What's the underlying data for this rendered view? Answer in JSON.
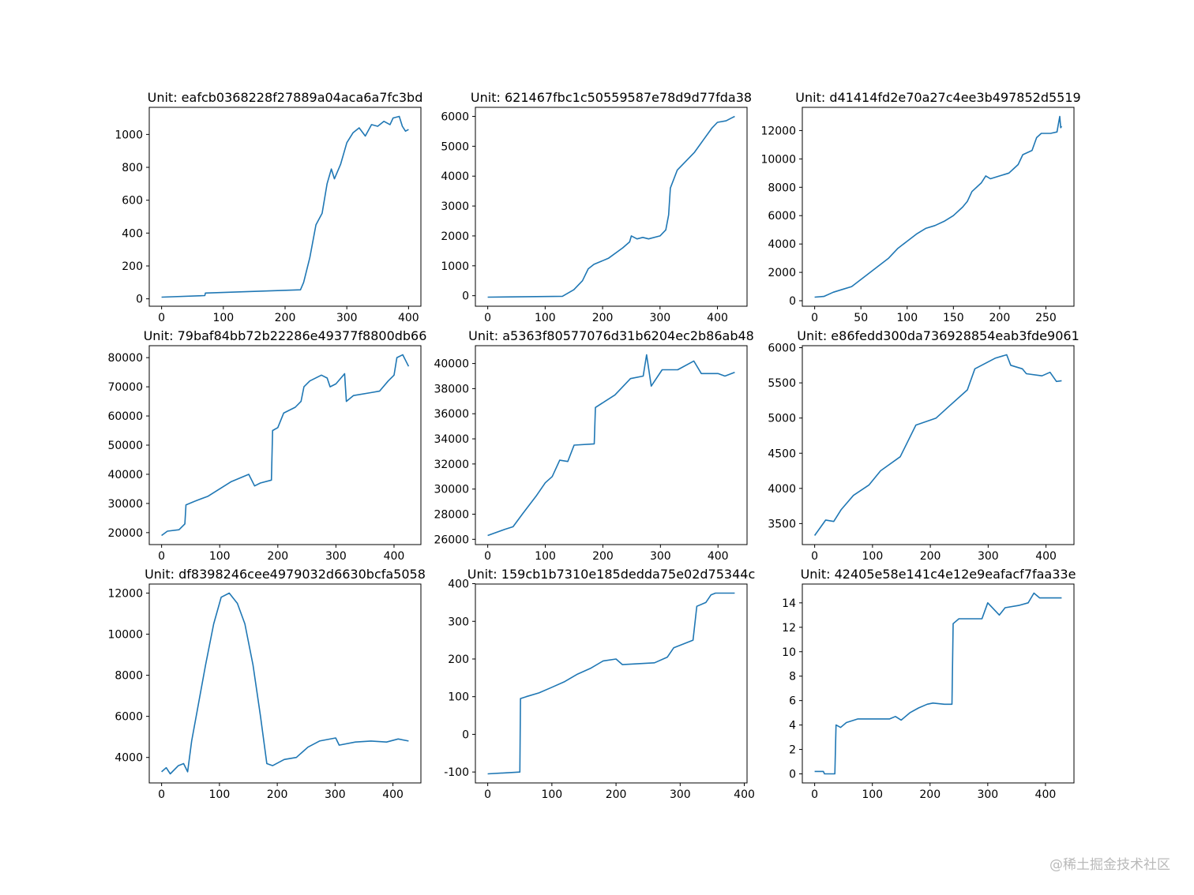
{
  "watermark": "@稀土掘金技术社区",
  "line_color": "#1f77b4",
  "chart_data": [
    {
      "type": "line",
      "title": "Unit: eafcb0368228f27889a04aca6a7fc3bd",
      "xticks": [
        0,
        100,
        200,
        300,
        400
      ],
      "yticks": [
        0,
        200,
        400,
        600,
        800,
        1000
      ],
      "x": [
        0,
        70,
        71,
        225,
        230,
        240,
        250,
        260,
        268,
        275,
        280,
        290,
        300,
        310,
        320,
        330,
        340,
        350,
        360,
        370,
        375,
        385,
        390,
        395,
        400
      ],
      "y": [
        10,
        20,
        35,
        55,
        100,
        250,
        450,
        520,
        700,
        790,
        730,
        820,
        950,
        1010,
        1040,
        990,
        1060,
        1050,
        1080,
        1060,
        1100,
        1110,
        1050,
        1020,
        1030
      ]
    },
    {
      "type": "line",
      "title": "Unit: 621467fbc1c50559587e78d9d77fda38",
      "xticks": [
        0,
        100,
        200,
        300,
        400
      ],
      "yticks": [
        0,
        1000,
        2000,
        3000,
        4000,
        5000,
        6000
      ],
      "x": [
        0,
        130,
        150,
        165,
        175,
        185,
        210,
        235,
        247,
        250,
        260,
        270,
        280,
        300,
        310,
        315,
        318,
        330,
        345,
        360,
        375,
        390,
        400,
        415,
        425,
        430
      ],
      "y": [
        -50,
        -20,
        200,
        500,
        900,
        1050,
        1250,
        1600,
        1800,
        2000,
        1900,
        1950,
        1900,
        2000,
        2200,
        2700,
        3600,
        4200,
        4500,
        4800,
        5200,
        5600,
        5800,
        5850,
        5950,
        6000
      ]
    },
    {
      "type": "line",
      "title": "Unit: d41414fd2e70a27c4ee3b497852d5519",
      "xticks": [
        0,
        50,
        100,
        150,
        200,
        250
      ],
      "yticks": [
        0,
        2000,
        4000,
        6000,
        8000,
        10000,
        12000
      ],
      "x": [
        0,
        10,
        20,
        30,
        40,
        50,
        60,
        70,
        80,
        90,
        100,
        110,
        120,
        130,
        140,
        150,
        160,
        165,
        170,
        180,
        185,
        190,
        200,
        210,
        215,
        220,
        225,
        235,
        240,
        245,
        255,
        262,
        265,
        266,
        267
      ],
      "y": [
        250,
        300,
        600,
        800,
        1000,
        1500,
        2000,
        2500,
        3000,
        3700,
        4200,
        4700,
        5100,
        5300,
        5600,
        6000,
        6600,
        7000,
        7700,
        8300,
        8800,
        8600,
        8800,
        9000,
        9300,
        9600,
        10300,
        10600,
        11500,
        11800,
        11800,
        11900,
        13000,
        12200,
        12300
      ]
    },
    {
      "type": "line",
      "title": "Unit: 79baf84bb72b22286e49377f8800db66",
      "xticks": [
        0,
        100,
        200,
        300,
        400
      ],
      "yticks": [
        20000,
        30000,
        40000,
        50000,
        60000,
        70000,
        80000
      ],
      "x": [
        0,
        10,
        30,
        40,
        42,
        60,
        80,
        100,
        120,
        150,
        160,
        170,
        189,
        191,
        200,
        210,
        230,
        240,
        245,
        255,
        275,
        285,
        290,
        300,
        315,
        318,
        330,
        360,
        375,
        390,
        400,
        405,
        415,
        420,
        425
      ],
      "y": [
        19000,
        20500,
        21000,
        23000,
        29500,
        31000,
        32500,
        35000,
        37500,
        40000,
        36000,
        37000,
        38000,
        55000,
        56000,
        61000,
        63000,
        65000,
        70000,
        72000,
        74000,
        73000,
        70000,
        71000,
        74500,
        65000,
        67000,
        68000,
        68500,
        72000,
        74000,
        80000,
        81000,
        79000,
        77000
      ]
    },
    {
      "type": "line",
      "title": "Unit: a5363f80577076d31b6204ec2b86ab48",
      "xticks": [
        0,
        100,
        200,
        300,
        400
      ],
      "yticks": [
        26000,
        28000,
        30000,
        32000,
        34000,
        36000,
        38000,
        40000
      ],
      "x": [
        0,
        30,
        44,
        60,
        85,
        100,
        112,
        125,
        139,
        150,
        185,
        187,
        221,
        248,
        270,
        276,
        284,
        303,
        330,
        358,
        371,
        400,
        412,
        429
      ],
      "y": [
        26300,
        26800,
        27000,
        28000,
        29500,
        30500,
        31000,
        32300,
        32200,
        33500,
        33600,
        36500,
        37500,
        38800,
        39000,
        40700,
        38200,
        39500,
        39500,
        40200,
        39200,
        39200,
        39000,
        39300
      ]
    },
    {
      "type": "line",
      "title": "Unit: e86fedd300da736928854eab3fde9061",
      "xticks": [
        0,
        100,
        200,
        300,
        400
      ],
      "yticks": [
        3500,
        4000,
        4500,
        5000,
        5500,
        6000
      ],
      "x": [
        0,
        19,
        33,
        46,
        67,
        94,
        114,
        148,
        175,
        210,
        230,
        264,
        277,
        312,
        332,
        339,
        359,
        366,
        393,
        407,
        418,
        427
      ],
      "y": [
        3330,
        3550,
        3530,
        3700,
        3900,
        4050,
        4250,
        4450,
        4900,
        5000,
        5150,
        5400,
        5700,
        5850,
        5900,
        5750,
        5700,
        5630,
        5600,
        5650,
        5520,
        5530
      ]
    },
    {
      "type": "line",
      "title": "Unit: df8398246cee4979032d6630bcfa5058",
      "xticks": [
        0,
        100,
        200,
        300,
        400
      ],
      "yticks": [
        4000,
        6000,
        8000,
        10000,
        12000
      ],
      "x": [
        0,
        8,
        15,
        29,
        38,
        45,
        52,
        63,
        76,
        90,
        103,
        117,
        131,
        144,
        158,
        171,
        182,
        192,
        212,
        233,
        253,
        273,
        301,
        307,
        335,
        362,
        389,
        409,
        427
      ],
      "y": [
        3300,
        3500,
        3200,
        3600,
        3700,
        3300,
        4800,
        6500,
        8500,
        10500,
        11800,
        12000,
        11500,
        10500,
        8500,
        6000,
        3700,
        3600,
        3900,
        4000,
        4500,
        4800,
        4950,
        4600,
        4750,
        4800,
        4750,
        4900,
        4800
      ]
    },
    {
      "type": "line",
      "title": "Unit: 159cb1b7310e185dedda75e02d75344c",
      "xticks": [
        0,
        100,
        200,
        300,
        400
      ],
      "yticks": [
        -100,
        0,
        100,
        200,
        300,
        400
      ],
      "x": [
        0,
        50,
        51,
        60,
        80,
        100,
        120,
        140,
        160,
        180,
        200,
        210,
        260,
        280,
        290,
        320,
        326,
        340,
        348,
        355,
        385
      ],
      "y": [
        -105,
        -100,
        95,
        100,
        110,
        125,
        140,
        160,
        175,
        195,
        200,
        185,
        190,
        205,
        230,
        250,
        340,
        350,
        370,
        375,
        375
      ]
    },
    {
      "type": "line",
      "title": "Unit: 42405e58e141c4e12e9eafacf7faa33e",
      "xticks": [
        0,
        100,
        200,
        300,
        400
      ],
      "yticks": [
        0,
        2,
        4,
        6,
        8,
        10,
        12,
        14
      ],
      "x": [
        0,
        15,
        17,
        35,
        37,
        45,
        55,
        75,
        130,
        140,
        150,
        165,
        180,
        195,
        205,
        225,
        238,
        240,
        250,
        290,
        300,
        320,
        330,
        355,
        370,
        380,
        390,
        428
      ],
      "y": [
        0.2,
        0.2,
        0,
        0,
        4,
        3.8,
        4.2,
        4.5,
        4.5,
        4.7,
        4.4,
        5,
        5.4,
        5.7,
        5.8,
        5.7,
        5.7,
        12.3,
        12.7,
        12.7,
        14,
        13,
        13.6,
        13.8,
        14,
        14.8,
        14.4,
        14.4
      ]
    }
  ]
}
